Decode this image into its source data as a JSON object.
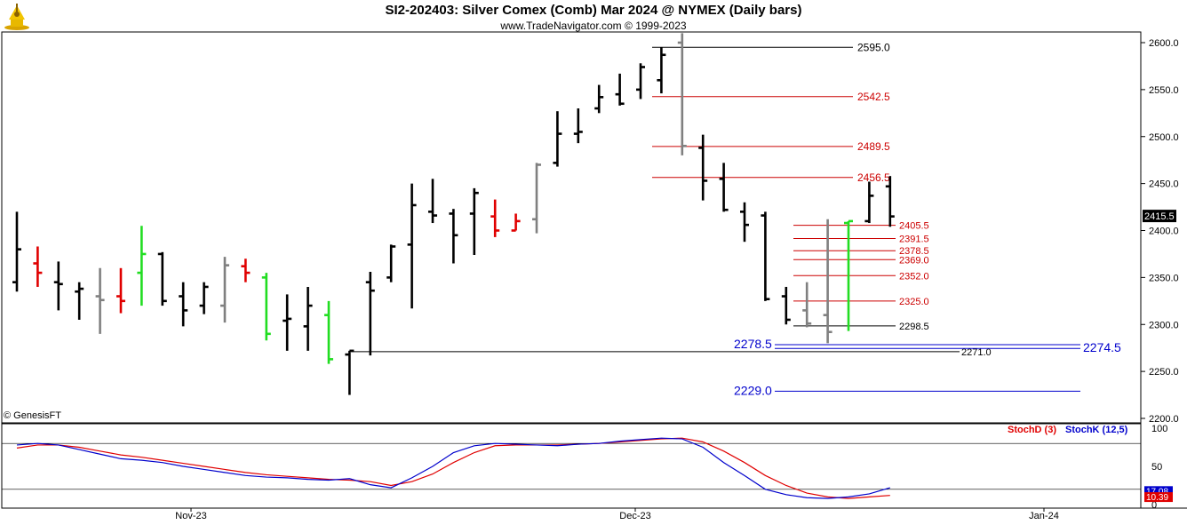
{
  "header": {
    "title": "SI2-202403:  Silver Comex (Comb) Mar 2024 @ NYMEX  (Daily bars)",
    "subtitle": "www.TradeNavigator.com © 1999-2023",
    "watermark": "© GenesisFT"
  },
  "colors": {
    "up": "#000000",
    "down": "#000000",
    "red": "#e00000",
    "green": "#22dd22",
    "gray": "#808080",
    "blue": "#0000cc",
    "redline": "#cc0000"
  },
  "chart_data": {
    "type": "ohlc",
    "price_axis": {
      "min": 2200,
      "max": 2600,
      "ticks": [
        "2600.0",
        "2550.0",
        "2500.0",
        "2450.0",
        "2400.0",
        "2350.0",
        "2300.0",
        "2250.0",
        "2200.0"
      ],
      "last_price": "2415.5"
    },
    "x_axis_labels": [
      "Nov-23",
      "Dec-23",
      "Jan-24"
    ],
    "bars": [
      {
        "o": 2345,
        "h": 2420,
        "l": 2335,
        "c": 2380,
        "color": "black"
      },
      {
        "o": 2365,
        "h": 2383,
        "l": 2340,
        "c": 2355,
        "color": "red"
      },
      {
        "o": 2345,
        "h": 2367,
        "l": 2315,
        "c": 2343,
        "color": "black"
      },
      {
        "o": 2335,
        "h": 2345,
        "l": 2305,
        "c": 2338,
        "color": "black"
      },
      {
        "o": 2330,
        "h": 2360,
        "l": 2290,
        "c": 2326,
        "color": "gray"
      },
      {
        "o": 2330,
        "h": 2360,
        "l": 2312,
        "c": 2325,
        "color": "red"
      },
      {
        "o": 2355,
        "h": 2405,
        "l": 2320,
        "c": 2375,
        "color": "green"
      },
      {
        "o": 2375,
        "h": 2377,
        "l": 2320,
        "c": 2325,
        "color": "black"
      },
      {
        "o": 2330,
        "h": 2345,
        "l": 2298,
        "c": 2315,
        "color": "black"
      },
      {
        "o": 2320,
        "h": 2345,
        "l": 2311,
        "c": 2340,
        "color": "black"
      },
      {
        "o": 2320,
        "h": 2372,
        "l": 2302,
        "c": 2363,
        "color": "gray"
      },
      {
        "o": 2362,
        "h": 2370,
        "l": 2345,
        "c": 2355,
        "color": "red"
      },
      {
        "o": 2350,
        "h": 2355,
        "l": 2283,
        "c": 2290,
        "color": "green"
      },
      {
        "o": 2304,
        "h": 2332,
        "l": 2272,
        "c": 2306,
        "color": "black"
      },
      {
        "o": 2298,
        "h": 2340,
        "l": 2272,
        "c": 2320,
        "color": "black"
      },
      {
        "o": 2310,
        "h": 2325,
        "l": 2258,
        "c": 2263,
        "color": "green"
      },
      {
        "o": 2268,
        "h": 2272,
        "l": 2225,
        "c": 2272,
        "color": "black"
      },
      {
        "o": 2345,
        "h": 2356,
        "l": 2267,
        "c": 2336,
        "color": "black"
      },
      {
        "o": 2350,
        "h": 2385,
        "l": 2345,
        "c": 2383,
        "color": "black"
      },
      {
        "o": 2385,
        "h": 2450,
        "l": 2317,
        "c": 2427,
        "color": "black"
      },
      {
        "o": 2420,
        "h": 2455,
        "l": 2408,
        "c": 2416,
        "color": "black"
      },
      {
        "o": 2418,
        "h": 2423,
        "l": 2365,
        "c": 2395,
        "color": "black"
      },
      {
        "o": 2418,
        "h": 2445,
        "l": 2374,
        "c": 2440,
        "color": "black"
      },
      {
        "o": 2415,
        "h": 2433,
        "l": 2393,
        "c": 2400,
        "color": "red"
      },
      {
        "o": 2400,
        "h": 2418,
        "l": 2400,
        "c": 2410,
        "color": "red"
      },
      {
        "o": 2412,
        "h": 2472,
        "l": 2397,
        "c": 2470,
        "color": "gray"
      },
      {
        "o": 2472,
        "h": 2527,
        "l": 2468,
        "c": 2503,
        "color": "black"
      },
      {
        "o": 2503,
        "h": 2530,
        "l": 2493,
        "c": 2505,
        "color": "black"
      },
      {
        "o": 2530,
        "h": 2555,
        "l": 2525,
        "c": 2542,
        "color": "black"
      },
      {
        "o": 2545,
        "h": 2567,
        "l": 2533,
        "c": 2535,
        "color": "black"
      },
      {
        "o": 2550,
        "h": 2578,
        "l": 2540,
        "c": 2574,
        "color": "black"
      },
      {
        "o": 2560,
        "h": 2595,
        "l": 2546,
        "c": 2587,
        "color": "black"
      },
      {
        "o": 2600,
        "h": 2610,
        "l": 2480,
        "c": 2490,
        "color": "gray"
      },
      {
        "o": 2488,
        "h": 2502,
        "l": 2432,
        "c": 2453,
        "color": "black"
      },
      {
        "o": 2455,
        "h": 2472,
        "l": 2420,
        "c": 2422,
        "color": "black"
      },
      {
        "o": 2420,
        "h": 2430,
        "l": 2388,
        "c": 2406,
        "color": "black"
      },
      {
        "o": 2416,
        "h": 2420,
        "l": 2325,
        "c": 2327,
        "color": "black"
      },
      {
        "o": 2330,
        "h": 2340,
        "l": 2300,
        "c": 2305,
        "color": "black"
      },
      {
        "o": 2315,
        "h": 2345,
        "l": 2297,
        "c": 2301,
        "color": "gray"
      },
      {
        "o": 2310,
        "h": 2412,
        "l": 2280,
        "c": 2292,
        "color": "gray"
      },
      {
        "o": 2408,
        "h": 2410,
        "l": 2293,
        "c": 2410,
        "color": "green"
      },
      {
        "o": 2410,
        "h": 2452,
        "l": 2408,
        "c": 2437,
        "color": "black"
      },
      {
        "o": 2447,
        "h": 2458,
        "l": 2404,
        "c": 2415,
        "color": "black"
      }
    ],
    "levels": [
      {
        "value": 2595.0,
        "label": "2595.0",
        "color": "black",
        "x0": 2.0,
        "x1": 9.0
      },
      {
        "value": 2542.5,
        "label": "2542.5",
        "color": "red",
        "x0": 2.0,
        "x1": 9.0
      },
      {
        "value": 2489.5,
        "label": "2489.5",
        "color": "red",
        "x0": 2.0,
        "x1": 9.0
      },
      {
        "value": 2456.5,
        "label": "2456.5",
        "color": "red",
        "x0": 2.0,
        "x1": 9.0
      },
      {
        "value": 2405.5,
        "label": "2405.5",
        "color": "red",
        "x0": 7.0,
        "x1": 11.0
      },
      {
        "value": 2391.5,
        "label": "2391.5",
        "color": "red",
        "x0": 7.0,
        "x1": 11.0
      },
      {
        "value": 2378.5,
        "label": "2378.5",
        "color": "red",
        "x0": 7.0,
        "x1": 11.0
      },
      {
        "value": 2369.0,
        "label": "2369.0",
        "color": "red",
        "x0": 7.0,
        "x1": 11.0
      },
      {
        "value": 2352.0,
        "label": "2352.0",
        "color": "red",
        "x0": 7.0,
        "x1": 11.0
      },
      {
        "value": 2325.0,
        "label": "2325.0",
        "color": "red",
        "x0": 7.0,
        "x1": 11.0
      },
      {
        "value": 2298.5,
        "label": "2298.5",
        "color": "black",
        "x0": 7.0,
        "x1": 11.0
      },
      {
        "value": 2271.0,
        "label": "2271.0",
        "color": "black",
        "x0": 16.0,
        "x1": 29.0
      },
      {
        "value": 2278.5,
        "label": "2278.5",
        "color": "blue",
        "x0": 7.0,
        "x1": 29.0
      },
      {
        "value": 2274.5,
        "label": "2274.5",
        "color": "blue",
        "x0": 7.0,
        "x1": 29.0
      },
      {
        "value": 2229.0,
        "label": "2229.0",
        "color": "blue",
        "x0": 7.0,
        "x1": 29.0
      }
    ],
    "stochastic": {
      "range": [
        0,
        100
      ],
      "ticks": [
        "100",
        "50",
        "0"
      ],
      "grid_levels": [
        20,
        80
      ],
      "labels": {
        "d": "StochD (3)",
        "k": "StochK (12,5)"
      },
      "last_values": {
        "k": "17.08",
        "d": "10.39"
      },
      "k": [
        78,
        80,
        78,
        72,
        66,
        60,
        58,
        55,
        50,
        46,
        42,
        38,
        36,
        35,
        33,
        32,
        34,
        26,
        22,
        35,
        50,
        68,
        77,
        80,
        79,
        78,
        77,
        79,
        80,
        83,
        85,
        87,
        86,
        75,
        55,
        38,
        20,
        13,
        9,
        8,
        10,
        14,
        22
      ],
      "d": [
        74,
        78,
        78,
        75,
        70,
        65,
        62,
        58,
        54,
        50,
        46,
        42,
        39,
        37,
        35,
        33,
        32,
        30,
        25,
        30,
        40,
        55,
        68,
        77,
        78,
        78,
        78,
        79,
        80,
        82,
        84,
        86,
        87,
        82,
        70,
        55,
        38,
        25,
        15,
        10,
        8,
        10,
        12
      ]
    }
  }
}
